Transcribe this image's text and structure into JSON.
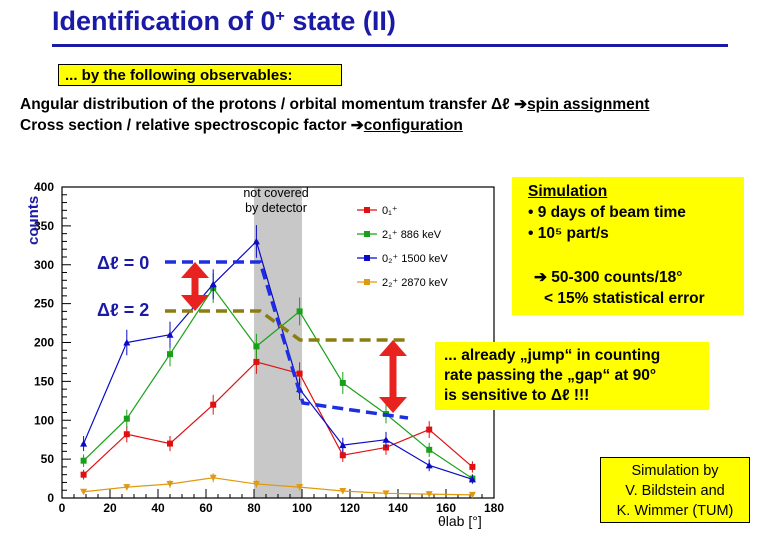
{
  "title": {
    "main": "Identification of 0",
    "sup": "+",
    "rest": " state (II)"
  },
  "observables_box": "... by the following observables:",
  "line1": {
    "text": "Angular distribution of the protons / orbital momentum transfer Δℓ ",
    "arrow": "➔",
    "link": "spin assignment"
  },
  "line2": {
    "text": "Cross section / relative spectroscopic factor ",
    "arrow": "➔",
    "link": "configuration"
  },
  "not_covered": [
    "not covered",
    "by detector"
  ],
  "delta_l_0": "Δℓ = 0",
  "delta_l_2": "Δℓ = 2",
  "simulation_box": {
    "heading": "Simulation",
    "bullets": [
      "•  9 days of beam time",
      "•  10⁵ part/s"
    ],
    "result_line1": "➔  50-300 counts/18°",
    "result_line2": "< 15% statistical error"
  },
  "jump_box": [
    "... already „jump“ in counting",
    "rate passing the „gap“ at 90°",
    "is sensitive to Δℓ !!!"
  ],
  "credit_box": [
    "Simulation by",
    "V. Bildstein and",
    "K. Wimmer (TUM)"
  ],
  "colors": {
    "title": "#1a1aa6",
    "highlight": "#ffff00",
    "gap": "#c8c8c8",
    "arrow": "#e8231f"
  },
  "chart_data": {
    "type": "line",
    "ylabel": "counts",
    "xlabel": "θlab [°]",
    "xlim": [
      0,
      180
    ],
    "ylim": [
      0,
      400
    ],
    "x_ticks": [
      0,
      20,
      40,
      60,
      80,
      100,
      120,
      140,
      160,
      180
    ],
    "y_ticks": [
      0,
      50,
      100,
      150,
      200,
      250,
      300,
      350,
      400
    ],
    "gap_region": [
      80,
      100
    ],
    "legend": [
      "0₁⁺",
      "2₁⁺  886 keV",
      "0₂⁺  1500 keV",
      "2₂⁺  2870 keV"
    ],
    "x": [
      9,
      27,
      45,
      63,
      81,
      99,
      117,
      135,
      153,
      171
    ],
    "series": [
      {
        "name": "0₁⁺",
        "color": "#e01010",
        "values": [
          30,
          82,
          70,
          120,
          175,
          160,
          55,
          65,
          88,
          40
        ]
      },
      {
        "name": "2₁⁺  886 keV",
        "color": "#18a018",
        "values": [
          48,
          102,
          185,
          270,
          195,
          240,
          148,
          108,
          62,
          25
        ]
      },
      {
        "name": "0₂⁺  1500 keV",
        "color": "#0a0ac8",
        "values": [
          70,
          200,
          210,
          275,
          330,
          140,
          68,
          75,
          42,
          24
        ]
      },
      {
        "name": "2₂⁺  2870 keV",
        "color": "#e09a10",
        "values": [
          8,
          14,
          18,
          26,
          18,
          14,
          9,
          6,
          5,
          4
        ]
      }
    ]
  }
}
